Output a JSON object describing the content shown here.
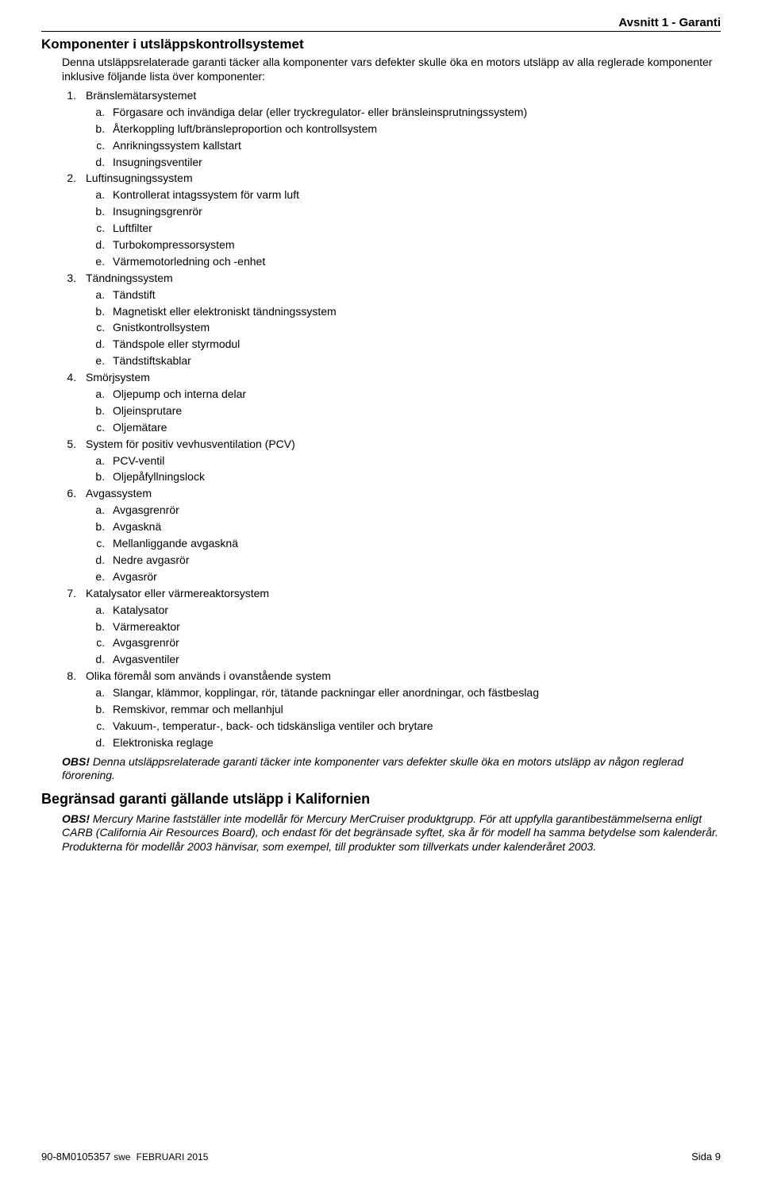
{
  "header": {
    "section_label": "Avsnitt 1 - Garanti"
  },
  "title1": "Komponenter i utsläppskontrollsystemet",
  "intro1": "Denna utsläppsrelaterade garanti täcker alla komponenter vars defekter skulle öka en motors utsläpp av alla reglerade komponenter inklusive följande lista över komponenter:",
  "list": [
    {
      "label": "Bränslemätarsystemet",
      "items": [
        "Förgasare och invändiga delar (eller tryckregulator- eller bränsleinsprutningssystem)",
        "Återkoppling luft/bränsleproportion och kontrollsystem",
        "Anrikningssystem kallstart",
        "Insugningsventiler"
      ]
    },
    {
      "label": "Luftinsugningssystem",
      "items": [
        "Kontrollerat intagssystem för varm luft",
        "Insugningsgrenrör",
        "Luftfilter",
        "Turbokompressorsystem",
        "Värmemotorledning och -enhet"
      ]
    },
    {
      "label": "Tändningssystem",
      "items": [
        "Tändstift",
        "Magnetiskt eller elektroniskt tändningssystem",
        "Gnistkontrollsystem",
        "Tändspole eller styrmodul",
        "Tändstiftskablar"
      ]
    },
    {
      "label": "Smörjsystem",
      "items": [
        "Oljepump och interna delar",
        "Oljeinsprutare",
        "Oljemätare"
      ]
    },
    {
      "label": "System för positiv vevhusventilation (PCV)",
      "items": [
        "PCV-ventil",
        "Oljepåfyllningslock"
      ]
    },
    {
      "label": "Avgassystem",
      "items": [
        "Avgasgrenrör",
        "Avgasknä",
        "Mellanliggande avgasknä",
        "Nedre avgasrör",
        "Avgasrör"
      ]
    },
    {
      "label": "Katalysator eller värmereaktorsystem",
      "items": [
        "Katalysator",
        "Värmereaktor",
        "Avgasgrenrör",
        "Avgasventiler"
      ]
    },
    {
      "label": "Olika föremål som används i ovanstående system",
      "items": [
        "Slangar, klämmor, kopplingar, rör, tätande packningar eller anordningar, och fästbeslag",
        "Remskivor, remmar och mellanhjul",
        "Vakuum-, temperatur-, back- och tidskänsliga ventiler och brytare",
        "Elektroniska reglage"
      ]
    }
  ],
  "obs1": {
    "label": "OBS!",
    "text": " Denna utsläppsrelaterade garanti täcker inte komponenter vars defekter skulle öka en motors utsläpp av någon reglerad förorening."
  },
  "title2": "Begränsad garanti gällande utsläpp i Kalifornien",
  "obs2": {
    "label": "OBS!",
    "text": " Mercury Marine fastställer inte modellår för Mercury MerCruiser produktgrupp. För att uppfylla garantibestämmelserna enligt CARB (California Air Resources Board), och endast för det begränsade syftet, ska år för modell ha samma betydelse som kalenderår. Produkterna för modellår 2003 hänvisar, som exempel, till produkter som tillverkats under kalenderåret 2003."
  },
  "footer": {
    "doc": "90-8M0105357",
    "lang": "swe",
    "date": "FEBRUARI  2015",
    "page": "Sida  9"
  }
}
